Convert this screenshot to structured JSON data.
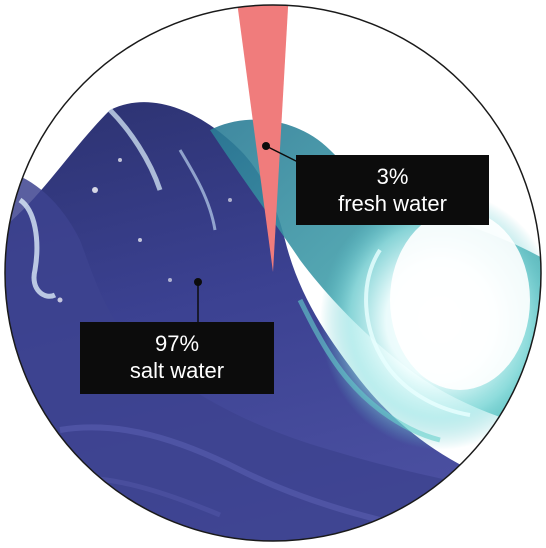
{
  "chart_data": {
    "type": "pie",
    "categories": [
      "fresh water",
      "salt water"
    ],
    "values": [
      3,
      97
    ],
    "colors": {
      "fresh water": "#f07c7c",
      "salt water": "wave-photo"
    },
    "labels": [
      {
        "percent": "3%",
        "name": "fresh water"
      },
      {
        "percent": "97%",
        "name": "salt water"
      }
    ]
  },
  "colors": {
    "outline": "#1a1a1a",
    "label_background": "#0c0c0c",
    "label_text": "#ffffff",
    "deep_wave": "#3a3f86",
    "mid_wave": "#2f6f8f",
    "foam": "#bfeff0"
  }
}
